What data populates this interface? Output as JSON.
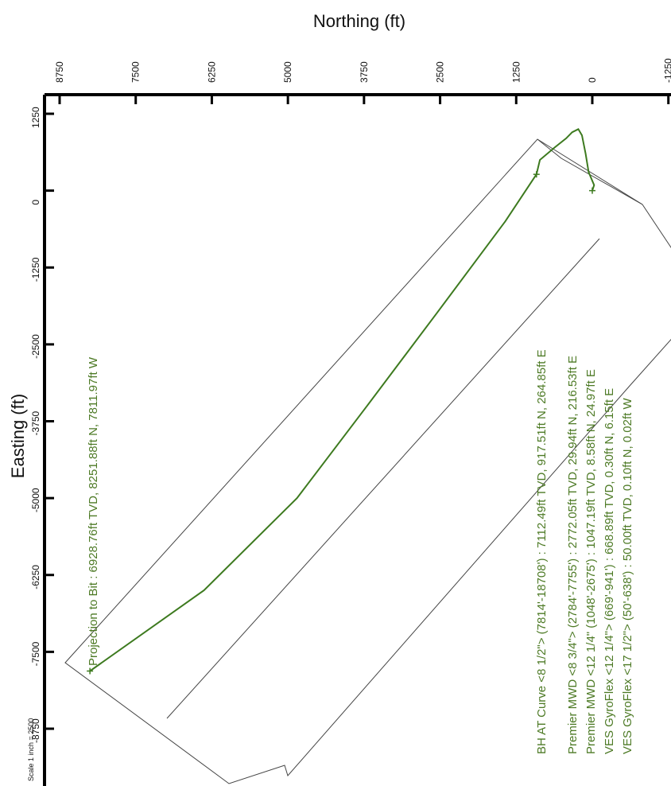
{
  "chart_data": {
    "type": "line",
    "x_axis": {
      "label": "Easting (ft)",
      "ticks": [
        "1250",
        "0",
        "-1250",
        "-2500",
        "-3750",
        "-5000",
        "-6250",
        "-7500",
        "-8750"
      ],
      "range": [
        1250,
        -8750
      ]
    },
    "y_axis": {
      "label": "Northing (ft)",
      "ticks": [
        "8750",
        "7500",
        "6250",
        "5000",
        "3750",
        "2500",
        "1250",
        "0",
        "-1250"
      ],
      "range": [
        8750,
        -1250
      ]
    },
    "series": [
      {
        "color": "#3d7a1f",
        "points": [
          {
            "e": 0,
            "n": 0
          },
          {
            "e": 90,
            "n": -30
          },
          {
            "e": 300,
            "n": 60
          },
          {
            "e": 600,
            "n": 110
          },
          {
            "e": 900,
            "n": 170
          },
          {
            "e": 1000,
            "n": 230
          },
          {
            "e": 950,
            "n": 330
          },
          {
            "e": 850,
            "n": 430
          },
          {
            "e": 700,
            "n": 620
          },
          {
            "e": 500,
            "n": 860
          },
          {
            "e": 265,
            "n": 917
          },
          {
            "e": -500,
            "n": 1430
          },
          {
            "e": -2000,
            "n": 2560
          },
          {
            "e": -3500,
            "n": 3700
          },
          {
            "e": -5000,
            "n": 4850
          },
          {
            "e": -6500,
            "n": 6380
          },
          {
            "e": -7812,
            "n": 8252
          }
        ]
      }
    ],
    "annotations": [
      "Projection to Bit : 6928.76ft TVD, 8251.88ft N, 7811.97ft W",
      "BH AT Curve <8 1/2\"> (7814'-18708') : 7112.49ft TVD, 917.51ft N, 264.85ft E",
      "Premier MWD <8 3/4\"> (2784'-7755') : 2772.05ft TVD, 29.94ft N, 216.53ft E",
      "Premier MWD <12 1/4\" (1048'-2675') : 1047.19ft TVD, 8.58ft N, 24.97ft E",
      "VES GyroFlex <12 1/4\"> (669'-941') : 668.89ft TVD, 0.30ft N, 6.15ft E",
      "VES GyroFlex <17 1/2\"> (50'-638') : 50.00ft TVD, 0.10ft N, 0.02ft W"
    ],
    "scale_note": "Scale 1 inch = 2500",
    "grid": false
  }
}
